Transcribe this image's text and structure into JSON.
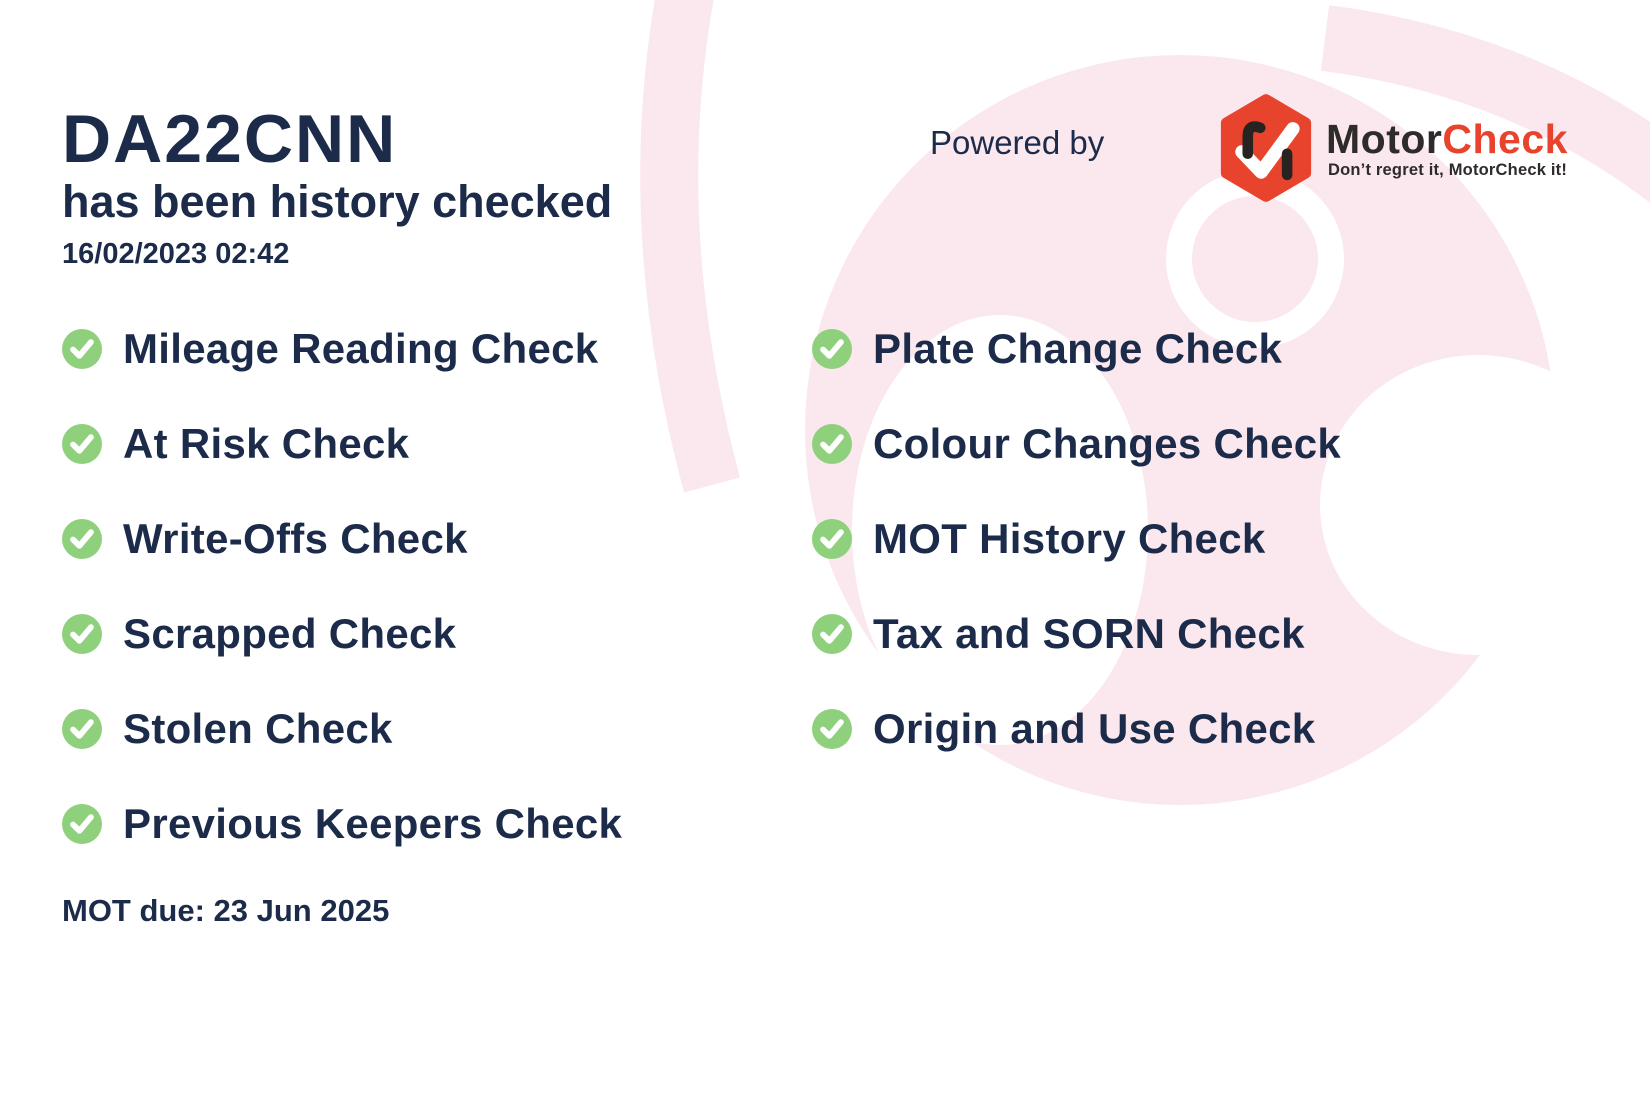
{
  "header": {
    "registration": "DA22CNN",
    "subtitle": "has been history checked",
    "timestamp": "16/02/2023 02:42"
  },
  "branding": {
    "powered_by_label": "Powered by",
    "brand_name_primary": "Motor",
    "brand_name_secondary": "Check",
    "tagline": "Don’t regret it, MotorCheck it!"
  },
  "checks": {
    "left": [
      "Mileage Reading Check",
      "At Risk Check",
      "Write-Offs Check",
      "Scrapped Check",
      "Stolen Check",
      "Previous Keepers Check"
    ],
    "right": [
      "Plate Change Check",
      "Colour Changes Check",
      "MOT History Check",
      "Tax and SORN Check",
      "Origin and Use Check"
    ]
  },
  "footer": {
    "mot_due": "MOT due: 23 Jun 2025"
  },
  "icons": {
    "check_item_icon": "check-circle-icon",
    "logo_icon": "motorcheck-hexagon-check-icon",
    "watermark": "steering-wheel-watermark"
  },
  "colors": {
    "navy": "#1C2B4A",
    "green": "#8FD07D",
    "red": "#E8432C",
    "pink": "#FAE8EE",
    "dark": "#2E2B2A",
    "white": "#FFFFFF"
  }
}
